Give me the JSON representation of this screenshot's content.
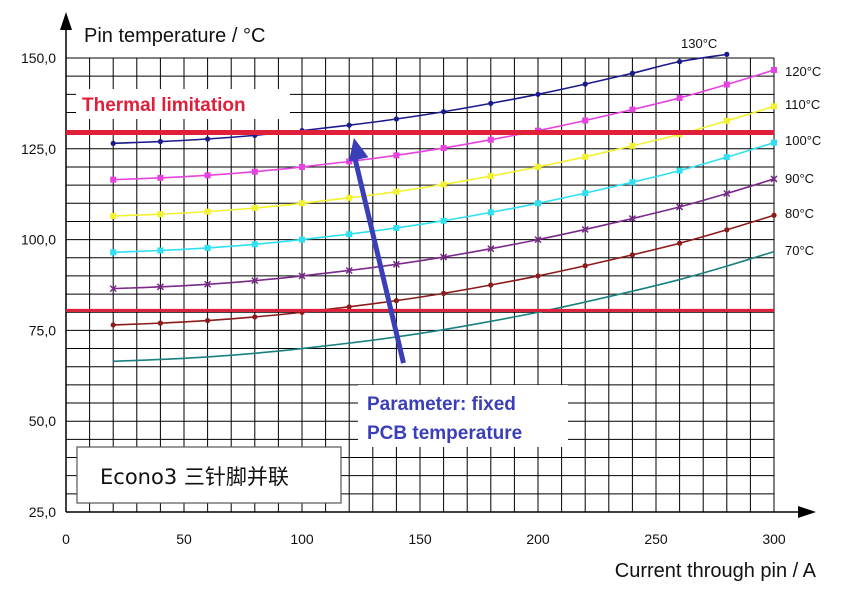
{
  "chart_data": {
    "type": "line",
    "ylabel": "Pin temperature / °C",
    "xlabel": "Current through pin / A",
    "xlim": [
      0,
      300
    ],
    "ylim": [
      25,
      150
    ],
    "xticks": [
      0,
      50,
      100,
      150,
      200,
      250,
      300
    ],
    "xtick_labels": [
      "0",
      "50",
      "100",
      "150",
      "200",
      "250",
      "300"
    ],
    "yticks": [
      25,
      50,
      75,
      100,
      125,
      150
    ],
    "ytick_labels": [
      "25,0",
      "50,0",
      "75,0",
      "100,0",
      "125,0",
      "150,0"
    ],
    "grid": true,
    "x": [
      20,
      40,
      60,
      80,
      100,
      120,
      140,
      160,
      180,
      200,
      220,
      240,
      260,
      280,
      300
    ],
    "series": [
      {
        "name": "130°C",
        "color": "#1a1a8c",
        "markers": true,
        "values": [
          126.5,
          127,
          127.7,
          128.7,
          130,
          131.5,
          133.2,
          135.2,
          137.5,
          140,
          142.8,
          145.8,
          149,
          151,
          null
        ]
      },
      {
        "name": "120°C",
        "color": "#e642e0",
        "markers": true,
        "values": [
          116.5,
          117,
          117.7,
          118.7,
          120,
          121.5,
          123.2,
          125.2,
          127.5,
          130,
          132.8,
          135.8,
          139,
          142.7,
          146.7
        ]
      },
      {
        "name": "110°C",
        "color": "#f2f230",
        "markers": true,
        "values": [
          106.5,
          107,
          107.7,
          108.7,
          110,
          111.5,
          113.2,
          115.2,
          117.5,
          120,
          122.8,
          125.8,
          129,
          132.7,
          136.7
        ]
      },
      {
        "name": "100°C",
        "color": "#2fe0f0",
        "markers": true,
        "values": [
          96.5,
          97,
          97.7,
          98.7,
          100,
          101.5,
          103.2,
          105.2,
          107.5,
          110,
          112.8,
          115.8,
          119,
          122.7,
          126.7
        ]
      },
      {
        "name": "90°C",
        "color": "#7a2a8a",
        "markers": true,
        "values": [
          86.5,
          87,
          87.7,
          88.7,
          90,
          91.5,
          93.2,
          95.2,
          97.5,
          100,
          102.8,
          105.8,
          109,
          112.7,
          116.7
        ]
      },
      {
        "name": "80°C",
        "color": "#8c1a1a",
        "markers": true,
        "values": [
          76.5,
          77,
          77.7,
          78.7,
          80,
          81.5,
          83.2,
          85.2,
          87.5,
          90,
          92.8,
          95.8,
          99,
          102.7,
          106.7
        ]
      },
      {
        "name": "70°C",
        "color": "#1a8080",
        "markers": false,
        "values": [
          66.5,
          67,
          67.7,
          68.7,
          70,
          71.5,
          73.2,
          75.2,
          77.5,
          80,
          82.8,
          85.8,
          89,
          92.7,
          96.7
        ]
      }
    ],
    "reference_lines": [
      {
        "y": 129.5,
        "color": "#e0203a",
        "label": "Thermal limitation"
      },
      {
        "y": 80.5,
        "color": "#e0203a"
      }
    ],
    "annotations": {
      "thermal": "Thermal limitation",
      "parameter_line1": "Parameter: fixed",
      "parameter_line2": "PCB temperature",
      "box_label": "Econo3 三针脚并联"
    },
    "arrow": {
      "from": [
        143,
        66
      ],
      "to": [
        122,
        128
      ],
      "color": "#3a3fb8"
    }
  }
}
